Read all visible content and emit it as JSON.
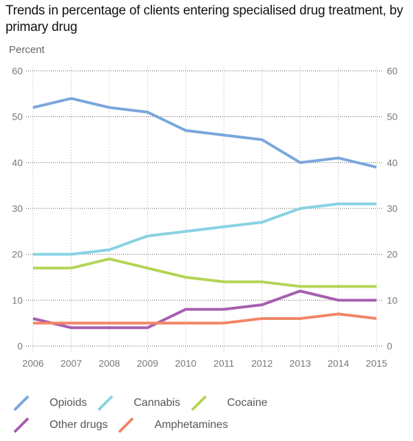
{
  "chart_data": {
    "type": "line",
    "title": "Trends in percentage of clients entering specialised drug treatment, by primary drug",
    "ylabel": "Percent",
    "xlabel": "",
    "x": [
      2006,
      2007,
      2008,
      2009,
      2010,
      2011,
      2012,
      2013,
      2014,
      2015
    ],
    "x_tick_labels": [
      "2006",
      "2007",
      "2008",
      "2009",
      "2010",
      "2011",
      "2012",
      "2013",
      "2014",
      "2015"
    ],
    "ylim": [
      0,
      60
    ],
    "y_ticks": [
      0,
      10,
      20,
      30,
      40,
      50,
      60
    ],
    "y_tick_labels": [
      "0",
      "10",
      "20",
      "30",
      "40",
      "50",
      "60"
    ],
    "y_axis_sides": "both",
    "grid": true,
    "legend_position": "bottom-left",
    "series": [
      {
        "name": "Opioids",
        "color": "#7aa6dc",
        "values": [
          52,
          54,
          52,
          51,
          47,
          46,
          45,
          40,
          41,
          39
        ]
      },
      {
        "name": "Cannabis",
        "color": "#88d2e2",
        "values": [
          20,
          20,
          21,
          24,
          25,
          26,
          27,
          30,
          31,
          31
        ]
      },
      {
        "name": "Cocaine",
        "color": "#b3d555",
        "values": [
          17,
          17,
          19,
          17,
          15,
          14,
          14,
          13,
          13,
          13
        ]
      },
      {
        "name": "Other drugs",
        "color": "#a65fae",
        "values": [
          6,
          4,
          4,
          4,
          8,
          8,
          9,
          12,
          10,
          10
        ]
      },
      {
        "name": "Amphetamines",
        "color": "#f28566",
        "values": [
          5,
          5,
          5,
          5,
          5,
          5,
          6,
          6,
          7,
          6
        ]
      }
    ]
  },
  "legend": {
    "rows": [
      [
        0,
        1,
        2
      ],
      [
        3,
        4
      ]
    ]
  }
}
